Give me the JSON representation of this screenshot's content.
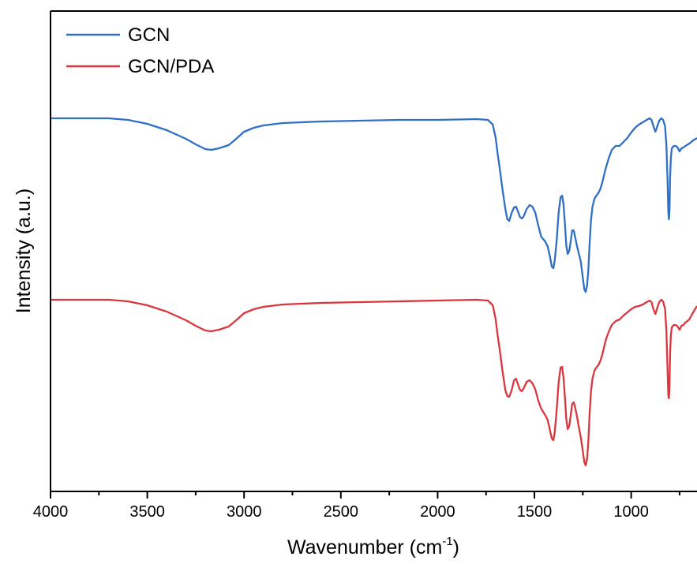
{
  "chart_data": {
    "type": "line",
    "xlabel": "Wavenumber (cm",
    "xlabel_superscript": "-1",
    "xlabel_suffix": ")",
    "ylabel": "Intensity (a.u.)",
    "xlim": [
      4000,
      660
    ],
    "x_reversed": true,
    "xticks": [
      4000,
      3500,
      3000,
      2500,
      2000,
      1500,
      1000
    ],
    "y_ticks_shown": false,
    "grid": false,
    "legend_position": "top-left",
    "series": [
      {
        "name": "GCN",
        "color": "#2f6fc4",
        "points": [
          [
            4000,
            150
          ],
          [
            3700,
            150
          ],
          [
            3600,
            152
          ],
          [
            3500,
            157
          ],
          [
            3400,
            165
          ],
          [
            3300,
            176
          ],
          [
            3250,
            183
          ],
          [
            3200,
            189
          ],
          [
            3170,
            190
          ],
          [
            3130,
            188
          ],
          [
            3080,
            184
          ],
          [
            3050,
            178
          ],
          [
            3000,
            167
          ],
          [
            2950,
            162
          ],
          [
            2900,
            159
          ],
          [
            2800,
            156
          ],
          [
            2600,
            154
          ],
          [
            2400,
            153
          ],
          [
            2200,
            152
          ],
          [
            2000,
            152
          ],
          [
            1800,
            151
          ],
          [
            1740,
            152
          ],
          [
            1715,
            158
          ],
          [
            1700,
            175
          ],
          [
            1690,
            195
          ],
          [
            1680,
            212
          ],
          [
            1665,
            240
          ],
          [
            1650,
            265
          ],
          [
            1640,
            278
          ],
          [
            1630,
            280
          ],
          [
            1618,
            270
          ],
          [
            1605,
            263
          ],
          [
            1595,
            262
          ],
          [
            1585,
            268
          ],
          [
            1575,
            275
          ],
          [
            1565,
            277
          ],
          [
            1555,
            274
          ],
          [
            1540,
            265
          ],
          [
            1525,
            260
          ],
          [
            1510,
            262
          ],
          [
            1495,
            270
          ],
          [
            1480,
            286
          ],
          [
            1465,
            300
          ],
          [
            1455,
            303
          ],
          [
            1445,
            306
          ],
          [
            1432,
            312
          ],
          [
            1420,
            325
          ],
          [
            1410,
            338
          ],
          [
            1402,
            340
          ],
          [
            1395,
            330
          ],
          [
            1385,
            305
          ],
          [
            1375,
            270
          ],
          [
            1365,
            250
          ],
          [
            1357,
            248
          ],
          [
            1350,
            258
          ],
          [
            1342,
            285
          ],
          [
            1335,
            312
          ],
          [
            1328,
            322
          ],
          [
            1320,
            318
          ],
          [
            1312,
            305
          ],
          [
            1305,
            292
          ],
          [
            1297,
            292
          ],
          [
            1290,
            300
          ],
          [
            1280,
            312
          ],
          [
            1270,
            322
          ],
          [
            1260,
            332
          ],
          [
            1250,
            352
          ],
          [
            1242,
            367
          ],
          [
            1235,
            370
          ],
          [
            1228,
            362
          ],
          [
            1222,
            345
          ],
          [
            1215,
            310
          ],
          [
            1208,
            280
          ],
          [
            1200,
            262
          ],
          [
            1190,
            252
          ],
          [
            1180,
            248
          ],
          [
            1170,
            245
          ],
          [
            1160,
            240
          ],
          [
            1150,
            232
          ],
          [
            1140,
            222
          ],
          [
            1130,
            212
          ],
          [
            1115,
            200
          ],
          [
            1100,
            190
          ],
          [
            1080,
            185
          ],
          [
            1060,
            185
          ],
          [
            1040,
            180
          ],
          [
            1020,
            175
          ],
          [
            1000,
            168
          ],
          [
            980,
            162
          ],
          [
            960,
            158
          ],
          [
            940,
            155
          ],
          [
            920,
            152
          ],
          [
            905,
            150
          ],
          [
            895,
            152
          ],
          [
            885,
            160
          ],
          [
            875,
            167
          ],
          [
            865,
            160
          ],
          [
            855,
            153
          ],
          [
            845,
            150
          ],
          [
            835,
            152
          ],
          [
            825,
            160
          ],
          [
            818,
            185
          ],
          [
            812,
            230
          ],
          [
            808,
            270
          ],
          [
            805,
            278
          ],
          [
            802,
            265
          ],
          [
            799,
            225
          ],
          [
            795,
            200
          ],
          [
            790,
            188
          ],
          [
            780,
            185
          ],
          [
            770,
            185
          ],
          [
            760,
            187
          ],
          [
            750,
            192
          ],
          [
            740,
            188
          ],
          [
            730,
            187
          ],
          [
            720,
            185
          ],
          [
            700,
            182
          ],
          [
            680,
            178
          ],
          [
            660,
            175
          ]
        ]
      },
      {
        "name": "GCN/PDA",
        "color": "#d9363e",
        "points": [
          [
            4000,
            380
          ],
          [
            3700,
            380
          ],
          [
            3600,
            382
          ],
          [
            3500,
            387
          ],
          [
            3400,
            395
          ],
          [
            3300,
            406
          ],
          [
            3250,
            413
          ],
          [
            3200,
            419
          ],
          [
            3170,
            420
          ],
          [
            3130,
            418
          ],
          [
            3080,
            414
          ],
          [
            3050,
            408
          ],
          [
            3000,
            397
          ],
          [
            2950,
            392
          ],
          [
            2900,
            389
          ],
          [
            2800,
            386
          ],
          [
            2600,
            384
          ],
          [
            2400,
            383
          ],
          [
            2200,
            382
          ],
          [
            2000,
            381
          ],
          [
            1800,
            380
          ],
          [
            1740,
            381
          ],
          [
            1715,
            387
          ],
          [
            1700,
            405
          ],
          [
            1690,
            425
          ],
          [
            1680,
            442
          ],
          [
            1665,
            470
          ],
          [
            1650,
            495
          ],
          [
            1640,
            502
          ],
          [
            1630,
            503
          ],
          [
            1618,
            495
          ],
          [
            1605,
            482
          ],
          [
            1595,
            480
          ],
          [
            1585,
            487
          ],
          [
            1575,
            494
          ],
          [
            1565,
            496
          ],
          [
            1555,
            492
          ],
          [
            1540,
            484
          ],
          [
            1525,
            482
          ],
          [
            1510,
            486
          ],
          [
            1495,
            494
          ],
          [
            1480,
            508
          ],
          [
            1465,
            518
          ],
          [
            1455,
            522
          ],
          [
            1445,
            526
          ],
          [
            1432,
            532
          ],
          [
            1420,
            545
          ],
          [
            1410,
            556
          ],
          [
            1402,
            558
          ],
          [
            1395,
            548
          ],
          [
            1385,
            520
          ],
          [
            1375,
            485
          ],
          [
            1365,
            466
          ],
          [
            1357,
            465
          ],
          [
            1350,
            478
          ],
          [
            1342,
            505
          ],
          [
            1335,
            532
          ],
          [
            1328,
            544
          ],
          [
            1320,
            540
          ],
          [
            1312,
            526
          ],
          [
            1305,
            512
          ],
          [
            1297,
            510
          ],
          [
            1290,
            516
          ],
          [
            1280,
            528
          ],
          [
            1270,
            542
          ],
          [
            1260,
            555
          ],
          [
            1250,
            572
          ],
          [
            1242,
            586
          ],
          [
            1235,
            590
          ],
          [
            1228,
            582
          ],
          [
            1222,
            562
          ],
          [
            1215,
            525
          ],
          [
            1208,
            497
          ],
          [
            1200,
            480
          ],
          [
            1190,
            470
          ],
          [
            1180,
            466
          ],
          [
            1170,
            463
          ],
          [
            1160,
            458
          ],
          [
            1150,
            450
          ],
          [
            1140,
            440
          ],
          [
            1130,
            430
          ],
          [
            1115,
            420
          ],
          [
            1100,
            412
          ],
          [
            1080,
            407
          ],
          [
            1060,
            405
          ],
          [
            1040,
            400
          ],
          [
            1020,
            396
          ],
          [
            1000,
            392
          ],
          [
            980,
            389
          ],
          [
            960,
            388
          ],
          [
            940,
            386
          ],
          [
            920,
            383
          ],
          [
            905,
            381
          ],
          [
            895,
            383
          ],
          [
            885,
            392
          ],
          [
            875,
            398
          ],
          [
            865,
            390
          ],
          [
            855,
            383
          ],
          [
            845,
            380
          ],
          [
            835,
            382
          ],
          [
            825,
            392
          ],
          [
            818,
            420
          ],
          [
            812,
            470
          ],
          [
            808,
            502
          ],
          [
            805,
            505
          ],
          [
            802,
            488
          ],
          [
            799,
            448
          ],
          [
            795,
            425
          ],
          [
            790,
            415
          ],
          [
            780,
            412
          ],
          [
            770,
            412
          ],
          [
            760,
            414
          ],
          [
            750,
            418
          ],
          [
            740,
            413
          ],
          [
            730,
            412
          ],
          [
            720,
            409
          ],
          [
            700,
            405
          ],
          [
            680,
            396
          ],
          [
            660,
            388
          ]
        ]
      }
    ]
  }
}
